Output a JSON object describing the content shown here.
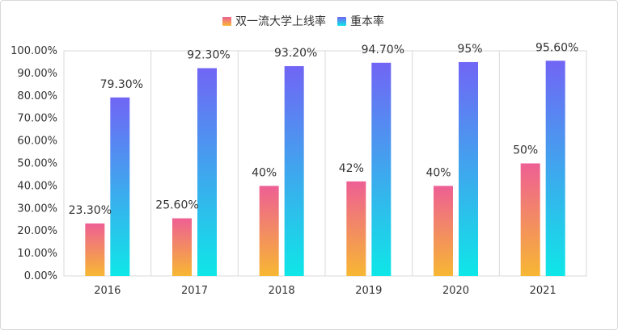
{
  "chart_data": {
    "type": "bar",
    "categories": [
      "2016",
      "2017",
      "2018",
      "2019",
      "2020",
      "2021"
    ],
    "series": [
      {
        "name": "双一流大学上线率",
        "values": [
          23.3,
          25.6,
          40,
          42,
          40,
          50
        ],
        "labels": [
          "23.30%",
          "25.60%",
          "40%",
          "42%",
          "40%",
          "50%"
        ],
        "gradient_top": "#ee5f94",
        "gradient_bottom": "#f7b733"
      },
      {
        "name": "重本率",
        "values": [
          79.3,
          92.3,
          93.2,
          94.7,
          95,
          95.6
        ],
        "labels": [
          "79.30%",
          "92.30%",
          "93.20%",
          "94.70%",
          "95%",
          "95.60%"
        ],
        "gradient_top": "#7165f5",
        "gradient_bottom": "#0ee7e7"
      }
    ],
    "ylim": [
      0,
      100
    ],
    "yticks": [
      0,
      10,
      20,
      30,
      40,
      50,
      60,
      70,
      80,
      90,
      100
    ],
    "ytick_labels": [
      "0.00%",
      "10.00%",
      "20.00%",
      "30.00%",
      "40.00%",
      "50.00%",
      "60.00%",
      "70.00%",
      "80.00%",
      "90.00%",
      "100.00%"
    ],
    "legend_position": "top-center",
    "grid": "vertical category separators",
    "xlabel": "",
    "ylabel": "",
    "title": ""
  }
}
